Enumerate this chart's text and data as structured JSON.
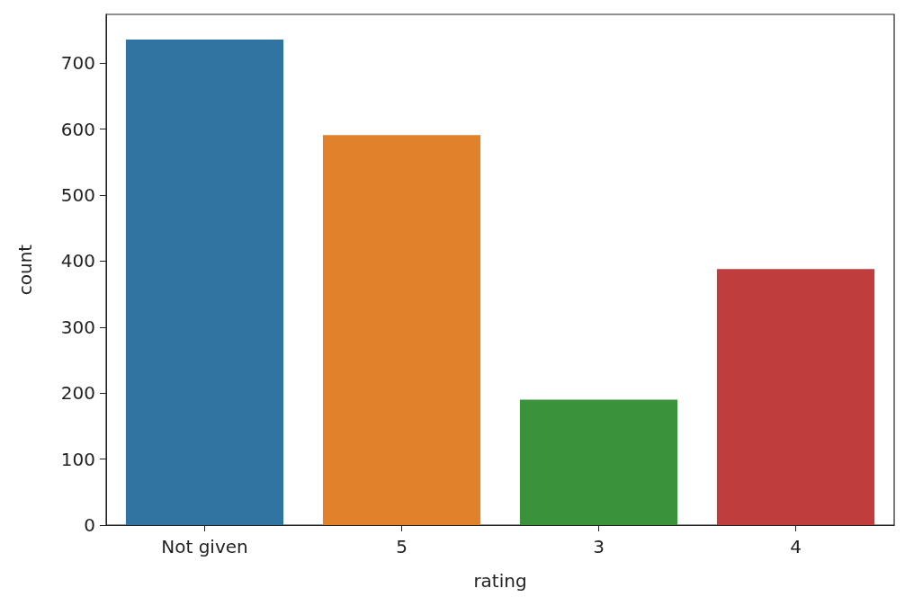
{
  "chart_data": {
    "type": "bar",
    "xlabel": "rating",
    "ylabel": "count",
    "categories": [
      "Not given",
      "5",
      "3",
      "4"
    ],
    "values": [
      736,
      591,
      190,
      388
    ],
    "colors": [
      "#3274a1",
      "#e1812c",
      "#3a923a",
      "#c03d3e"
    ],
    "ylim": [
      0,
      774
    ],
    "yticks": [
      0,
      100,
      200,
      300,
      400,
      500,
      600,
      700
    ],
    "grid": false
  }
}
